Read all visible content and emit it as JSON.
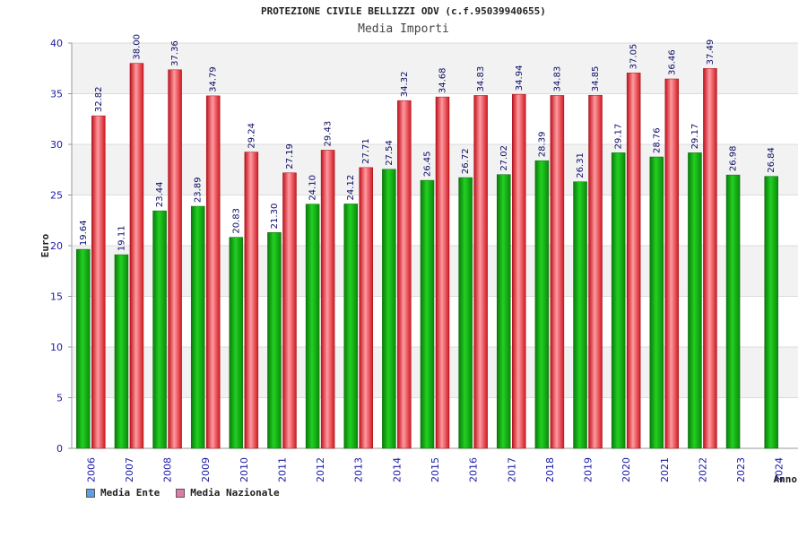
{
  "chart_data": {
    "type": "bar",
    "title": "PROTEZIONE CIVILE BELLIZZI ODV (c.f.95039940655)",
    "subtitle": "Media Importi",
    "xlabel": "Anno",
    "ylabel": "Euro",
    "ylim": [
      0,
      40
    ],
    "yticks": [
      0,
      5,
      10,
      15,
      20,
      25,
      30,
      35,
      40
    ],
    "categories": [
      "2006",
      "2007",
      "2008",
      "2009",
      "2010",
      "2011",
      "2012",
      "2013",
      "2014",
      "2015",
      "2016",
      "2017",
      "2018",
      "2019",
      "2020",
      "2021",
      "2022",
      "2023",
      "2024"
    ],
    "series": [
      {
        "name": "Media Ente",
        "color": "#1aa81a",
        "legend_color": "#5aa0e6",
        "values": [
          19.64,
          19.11,
          23.44,
          23.89,
          20.83,
          21.3,
          24.1,
          24.12,
          27.54,
          26.45,
          26.72,
          27.02,
          28.39,
          26.31,
          29.17,
          28.76,
          29.17,
          26.98,
          26.84
        ],
        "labels": [
          "19.64",
          "19.11",
          "23.44",
          "23.89",
          "20.83",
          "21.30",
          "24.10",
          "24.12",
          "27.54",
          "26.45",
          "26.72",
          "27.02",
          "28.39",
          "26.31",
          "29.17",
          "28.76",
          "29.17",
          "26.98",
          "26.84"
        ]
      },
      {
        "name": "Media Nazionale",
        "color": "#e0202a",
        "legend_color": "#e07aa8",
        "values": [
          32.82,
          38.0,
          37.36,
          34.79,
          29.24,
          27.19,
          29.43,
          27.71,
          34.32,
          34.68,
          34.83,
          34.94,
          34.83,
          34.85,
          37.05,
          36.46,
          37.49,
          null,
          null
        ],
        "labels": [
          "32.82",
          "38.00",
          "37.36",
          "34.79",
          "29.24",
          "27.19",
          "29.43",
          "27.71",
          "34.32",
          "34.68",
          "34.83",
          "34.94",
          "34.83",
          "34.85",
          "37.05",
          "36.46",
          "37.49",
          "",
          ""
        ]
      }
    ],
    "grid": true,
    "legend_position": "bottom-left"
  }
}
